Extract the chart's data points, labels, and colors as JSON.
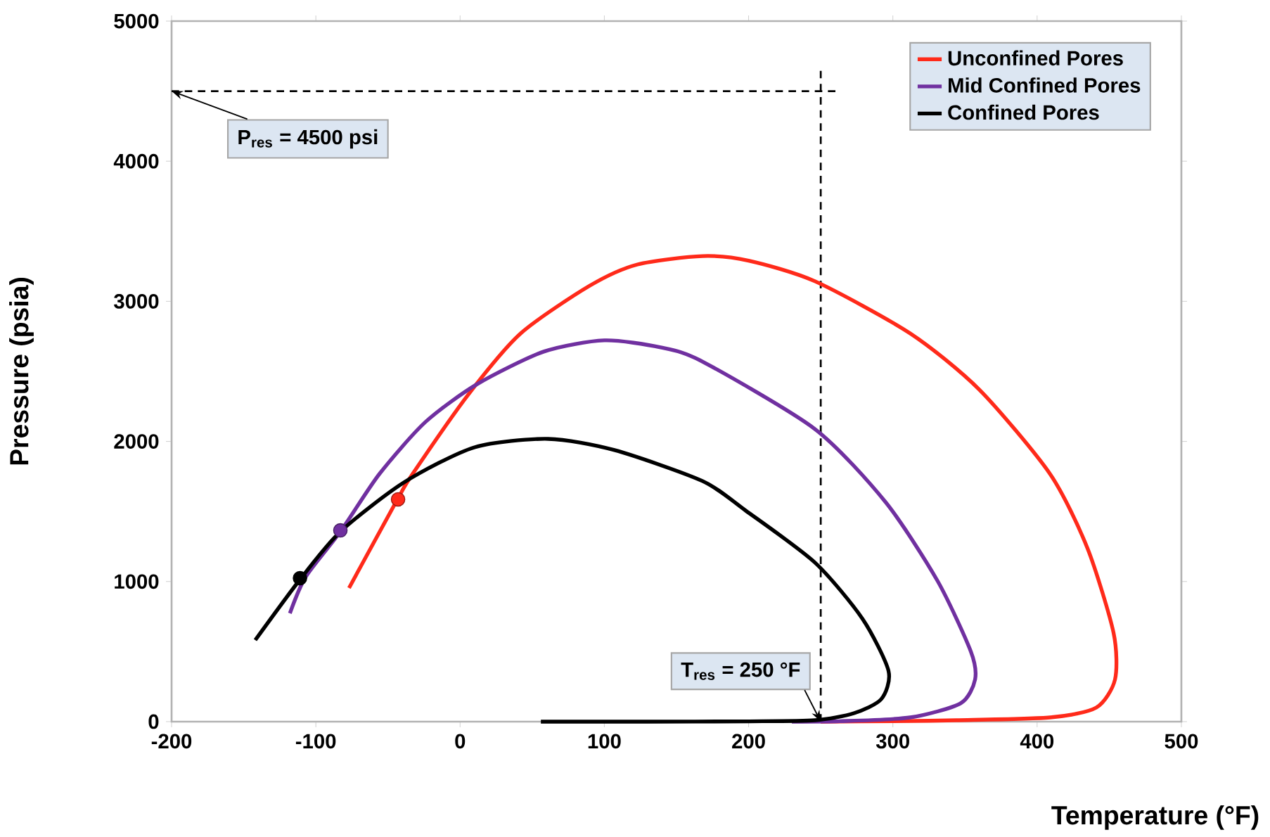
{
  "chart_data": {
    "type": "line",
    "xlabel": "Temperature (°F)",
    "ylabel": "Pressure (psia)",
    "xlim": [
      -200,
      500
    ],
    "ylim": [
      0,
      5000
    ],
    "xticks": [
      -200,
      -100,
      0,
      100,
      200,
      300,
      400,
      500
    ],
    "yticks": [
      0,
      1000,
      2000,
      3000,
      4000,
      5000
    ],
    "legend": "top right",
    "marker": "none",
    "grid": false,
    "series": [
      {
        "name": "Unconfined Pores",
        "color": "#ff2a1a",
        "x": [
          -77,
          -44,
          -33,
          6,
          42,
          90,
          123,
          168,
          200,
          246,
          312,
          360,
          409,
          435,
          453,
          454,
          441,
          409,
          344,
          300,
          250
        ],
        "values": [
          954,
          1576,
          1767,
          2339,
          2771,
          3112,
          3263,
          3323,
          3290,
          3143,
          2771,
          2369,
          1767,
          1235,
          633,
          301,
          100,
          30,
          10,
          3,
          0
        ]
      },
      {
        "name": "Mid Confined Pores",
        "color": "#7030a0",
        "x": [
          -118,
          -107,
          -83,
          -56,
          -24,
          12,
          58,
          100,
          139,
          168,
          246,
          295,
          331,
          354,
          357,
          347,
          312,
          263,
          230
        ],
        "values": [
          773,
          1034,
          1356,
          1767,
          2139,
          2410,
          2641,
          2721,
          2671,
          2570,
          2088,
          1566,
          1004,
          502,
          301,
          131,
          30,
          3,
          0
        ]
      },
      {
        "name": "Confined Pores",
        "color": "#000000",
        "x": [
          -142,
          -111,
          -83,
          -39,
          10,
          61,
          107,
          168,
          198,
          246,
          279,
          297,
          292,
          273,
          246,
          200,
          130,
          56
        ],
        "values": [
          582,
          1014,
          1356,
          1707,
          1958,
          2018,
          1938,
          1717,
          1506,
          1135,
          733,
          361,
          161,
          60,
          10,
          2,
          0,
          0
        ]
      },
      {
        "type": "scatter",
        "marker": "circle",
        "color": "#ff2a1a",
        "x": [
          -43
        ],
        "values": [
          1586
        ]
      },
      {
        "type": "scatter",
        "marker": "circle",
        "color": "#7030a0",
        "x": [
          -83
        ],
        "values": [
          1365
        ]
      },
      {
        "type": "scatter",
        "marker": "circle",
        "color": "#000000",
        "x": [
          -111
        ],
        "values": [
          1024
        ]
      }
    ],
    "ref_lines": [
      {
        "axis": "y",
        "value": 4500,
        "label": "P$_{res}$ = 4500 psi",
        "line_style": "dashed",
        "color": "#000000"
      },
      {
        "axis": "x",
        "value": 250,
        "label": "T$_{res}$ = 250 °F",
        "line_style": "dashed",
        "color": "#000000"
      }
    ]
  }
}
